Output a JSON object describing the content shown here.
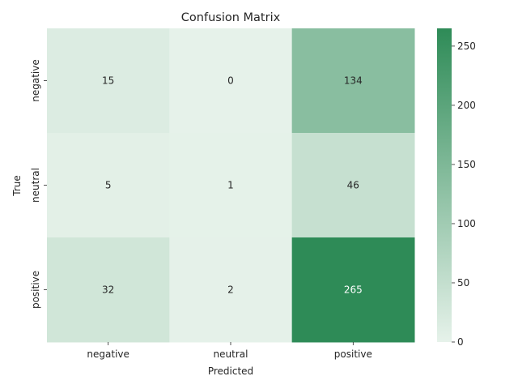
{
  "chart_data": {
    "type": "heatmap",
    "title": "Confusion Matrix",
    "xlabel": "Predicted",
    "ylabel": "True",
    "x_categories": [
      "negative",
      "neutral",
      "positive"
    ],
    "y_categories": [
      "negative",
      "neutral",
      "positive"
    ],
    "values": [
      [
        15,
        0,
        134
      ],
      [
        5,
        1,
        46
      ],
      [
        32,
        2,
        265
      ]
    ],
    "colorbar": {
      "min": 0,
      "max": 265,
      "ticks": [
        0,
        50,
        100,
        150,
        200,
        250
      ],
      "low_color": "#e6f2ea",
      "high_color": "#2e8b57"
    },
    "annotations_dark_text_color": "#262626",
    "annotations_light_text_color": "#ffffff"
  }
}
